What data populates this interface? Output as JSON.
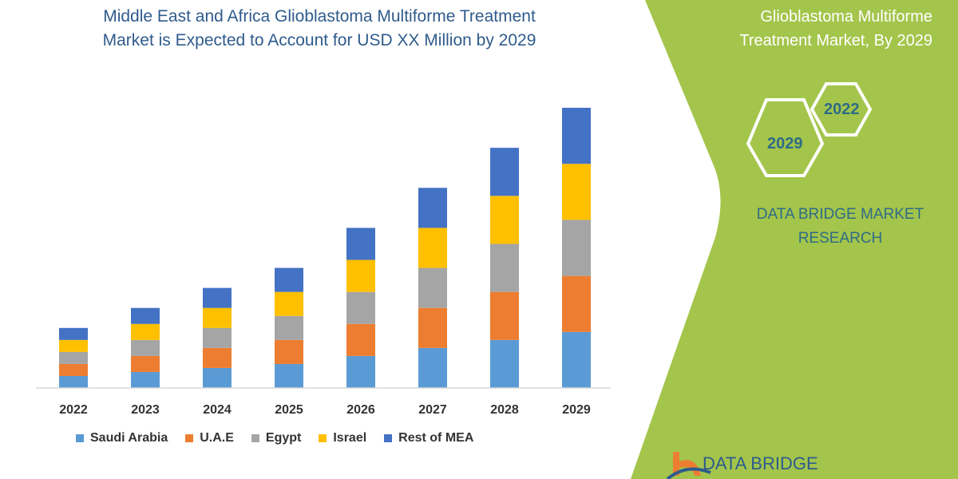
{
  "title": "Middle East and Africa Glioblastoma Multiforme Treatment Market is Expected to Account for USD XX Million by 2029",
  "title_lines": [
    "Middle East and Africa Glioblastoma Multiforme Treatment",
    "Market is Expected to Account for USD XX Million by 2029"
  ],
  "side_panel": {
    "title_lines": [
      "Glioblastoma Multiforme",
      "Treatment Market, By 2029"
    ],
    "hex_years": [
      "2022",
      "2029"
    ],
    "brand_lines": [
      "DATA BRIDGE MARKET",
      "RESEARCH"
    ],
    "logo_text": "DATA BRIDGE",
    "panel_color": "#a3c54b"
  },
  "chart_data": {
    "type": "bar",
    "stacked": true,
    "title": "",
    "xlabel": "",
    "ylabel": "",
    "y_axis_shown": false,
    "grid": false,
    "legend_placement": "bottom",
    "value_note_units": "relative (no axis printed)",
    "categories": [
      "2022",
      "2023",
      "2024",
      "2025",
      "2026",
      "2027",
      "2028",
      "2029"
    ],
    "series": [
      {
        "name": "Saudi Arabia",
        "color": "#5b9bd5",
        "values": [
          3,
          4,
          5,
          6,
          8,
          10,
          12,
          14
        ]
      },
      {
        "name": "U.A.E",
        "color": "#ed7d31",
        "values": [
          3,
          4,
          5,
          6,
          8,
          10,
          12,
          14
        ]
      },
      {
        "name": "Egypt",
        "color": "#a5a5a5",
        "values": [
          3,
          4,
          5,
          6,
          8,
          10,
          12,
          14
        ]
      },
      {
        "name": "Israel",
        "color": "#ffc000",
        "values": [
          3,
          4,
          5,
          6,
          8,
          10,
          12,
          14
        ]
      },
      {
        "name": "Rest of MEA",
        "color": "#4472c4",
        "values": [
          3,
          4,
          5,
          6,
          8,
          10,
          12,
          14
        ]
      }
    ],
    "ylim": [
      0,
      72
    ]
  }
}
